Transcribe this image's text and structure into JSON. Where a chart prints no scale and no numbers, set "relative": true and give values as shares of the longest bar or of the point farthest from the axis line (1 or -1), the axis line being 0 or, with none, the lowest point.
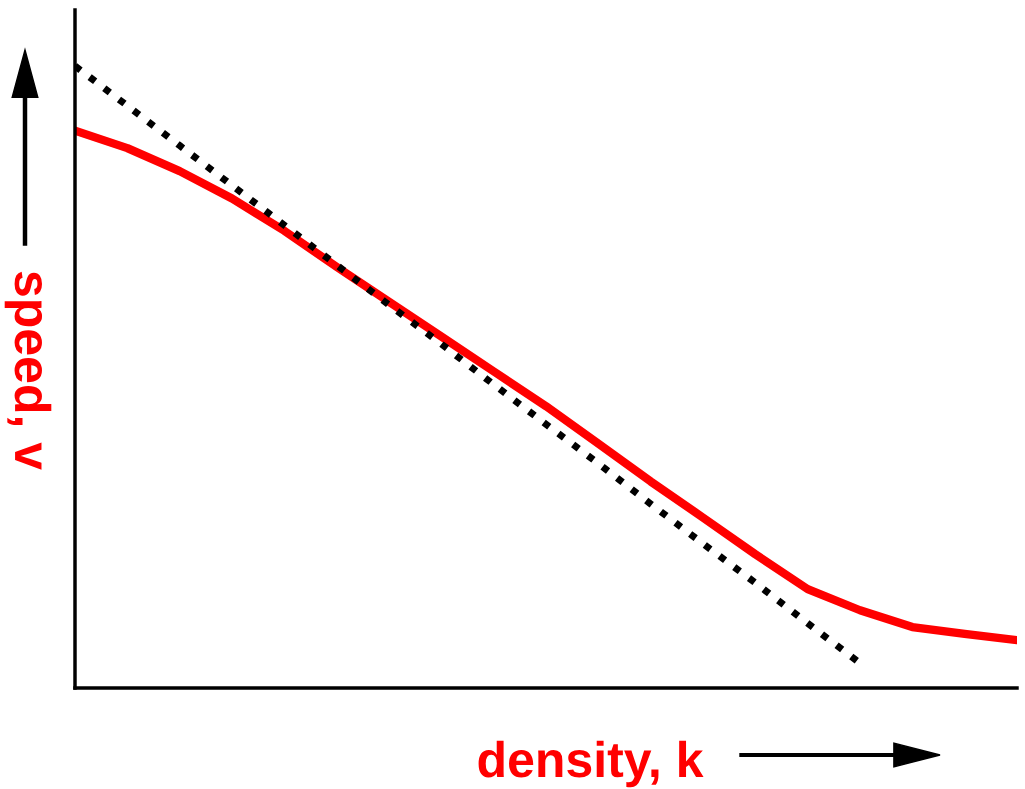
{
  "chart_data": {
    "type": "line",
    "relative": true,
    "xlabel": "density, k",
    "ylabel": "speed, v",
    "legend": false,
    "marker": "none",
    "categories": [
      null,
      null,
      null,
      null,
      null,
      null,
      null,
      null,
      null,
      null,
      null,
      null,
      null,
      null,
      null,
      null,
      null,
      null,
      null
    ],
    "series": [
      {
        "color": "#ff0000",
        "line_style": "solid",
        "values": [
          0.896,
          0.868,
          0.831,
          0.787,
          0.735,
          0.677,
          0.621,
          0.565,
          0.509,
          0.453,
          0.393,
          0.332,
          0.274,
          0.215,
          0.159,
          0.125,
          0.098,
          0.087,
          0.077
        ]
      },
      {
        "color": "#000000",
        "line_style": "dotted",
        "values": [
          1,
          0.936,
          0.872,
          0.808,
          0.744,
          0.68,
          0.616,
          0.553,
          0.488,
          0.424,
          0.361,
          0.296,
          0.232,
          0.169,
          0.104,
          0.04,
          null,
          null,
          null
        ]
      }
    ]
  }
}
